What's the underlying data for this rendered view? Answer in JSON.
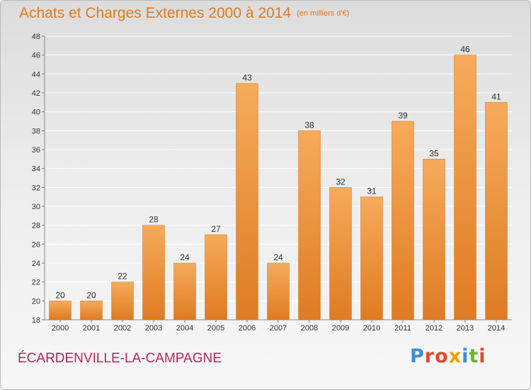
{
  "title": "Achats et Charges Externes 2000 à 2014",
  "subtitle": "(en milliers d'€)",
  "commune": "ÉCARDENVILLE-LA-CAMPAGNE",
  "logo": {
    "text": "Proxiti",
    "letter_colors": [
      "#3a8fd8",
      "#e8462c",
      "#e8462c",
      "#f0a000",
      "#3a8fd8",
      "#6cb52d",
      "#e8462c"
    ]
  },
  "colors": {
    "title": "#e07a1f",
    "commune": "#b8245a",
    "bar_light": "#f6ab5b",
    "bar_dark": "#df7b22",
    "axis_text": "#333333",
    "grid": "#ffffff"
  },
  "chart_data": {
    "type": "bar",
    "title": "Achats et Charges Externes 2000 à 2014",
    "subtitle": "(en milliers d'€)",
    "categories": [
      "2000",
      "2001",
      "2002",
      "2003",
      "2004",
      "2005",
      "2006",
      "2007",
      "2008",
      "2009",
      "2010",
      "2011",
      "2012",
      "2013",
      "2014"
    ],
    "values": [
      20,
      20,
      22,
      28,
      24,
      27,
      43,
      24,
      38,
      32,
      31,
      39,
      35,
      46,
      41
    ],
    "ylim": [
      18,
      48
    ],
    "ytick_step": 2,
    "xlabel": "",
    "ylabel": "",
    "grid": true,
    "data_labels": true
  }
}
